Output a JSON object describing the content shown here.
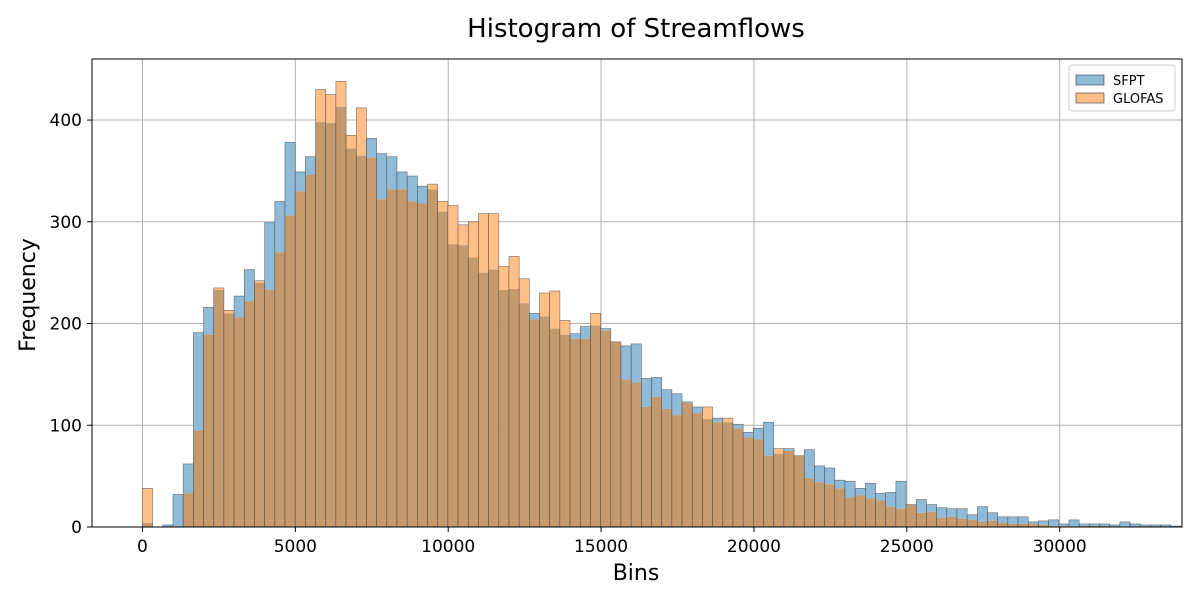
{
  "chart_data": {
    "type": "histogram",
    "title": "Histogram of Streamflows",
    "xlabel": "Bins",
    "ylabel": "Frequency",
    "xlim": [
      -1650,
      34000
    ],
    "ylim": [
      0,
      460
    ],
    "xticks": [
      0,
      5000,
      10000,
      15000,
      20000,
      25000,
      30000
    ],
    "xtick_labels": [
      "0",
      "5000",
      "10000",
      "15000",
      "20000",
      "25000",
      "30000"
    ],
    "yticks": [
      0,
      100,
      200,
      300,
      400
    ],
    "ytick_labels": [
      "0",
      "100",
      "200",
      "300",
      "400"
    ],
    "grid": true,
    "legend_position": "top-right",
    "bin_start": 0,
    "bin_width": 333,
    "overlap_color": "#c49a6c",
    "edge_color": "#3a3a3a",
    "series": [
      {
        "name": "SFPT",
        "color": "#1f77b4",
        "fill": "#8fbbd9",
        "values": [
          4,
          0,
          2,
          32,
          62,
          191,
          216,
          233,
          210,
          227,
          253,
          240,
          299,
          320,
          378,
          349,
          364,
          398,
          397,
          413,
          372,
          365,
          382,
          367,
          364,
          349,
          345,
          335,
          332,
          310,
          278,
          277,
          265,
          250,
          253,
          233,
          234,
          220,
          210,
          207,
          195,
          189,
          190,
          197,
          198,
          195,
          182,
          178,
          180,
          146,
          147,
          135,
          131,
          123,
          118,
          106,
          107,
          103,
          101,
          93,
          97,
          103,
          72,
          77,
          70,
          76,
          60,
          58,
          46,
          45,
          38,
          43,
          33,
          34,
          45,
          22,
          27,
          22,
          19,
          18,
          18,
          12,
          20,
          14,
          10,
          10,
          10,
          5,
          6,
          7,
          3,
          7,
          3,
          3,
          3,
          2,
          5,
          3,
          2,
          2,
          2,
          1,
          0,
          0,
          0,
          1
        ]
      },
      {
        "name": "GLOFAS",
        "color": "#ff7f0e",
        "fill": "#ffbf87",
        "values": [
          38,
          0,
          0,
          0,
          33,
          95,
          189,
          235,
          213,
          206,
          222,
          242,
          233,
          270,
          306,
          330,
          346,
          430,
          425,
          438,
          385,
          412,
          363,
          322,
          332,
          332,
          320,
          318,
          337,
          320,
          316,
          297,
          300,
          308,
          308,
          256,
          266,
          244,
          204,
          230,
          232,
          203,
          185,
          185,
          210,
          193,
          182,
          145,
          142,
          118,
          128,
          116,
          110,
          122,
          112,
          118,
          103,
          107,
          97,
          88,
          86,
          70,
          77,
          75,
          70,
          48,
          44,
          42,
          38,
          29,
          31,
          28,
          26,
          20,
          18,
          22,
          14,
          15,
          9,
          10,
          8,
          7,
          5,
          6,
          4,
          3,
          3,
          3,
          2,
          1,
          1,
          0,
          1,
          1,
          1,
          0,
          0,
          0,
          0,
          0,
          0,
          0,
          0,
          0,
          0,
          0
        ]
      }
    ]
  }
}
